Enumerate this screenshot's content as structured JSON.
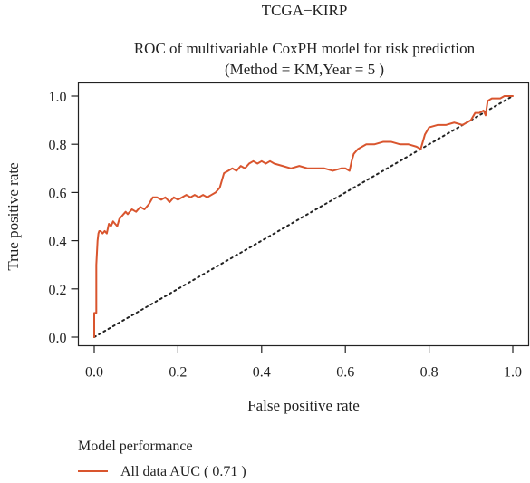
{
  "chart_data": {
    "type": "line",
    "supertitle": "TCGA−KIRP",
    "title": "ROC of multivariable CoxPH model for risk prediction",
    "subtitle": "(Method = KM,Year = 5 )",
    "xlabel": "False positive rate",
    "ylabel": "True positive rate",
    "xlim": [
      0,
      1
    ],
    "ylim": [
      0,
      1
    ],
    "xticks": [
      "0.0",
      "0.2",
      "0.4",
      "0.6",
      "0.8",
      "1.0"
    ],
    "yticks": [
      "0.0",
      "0.2",
      "0.4",
      "0.6",
      "0.8",
      "1.0"
    ],
    "grid": false,
    "legend_position": "bottom-left",
    "legend_title": "Model performance",
    "series": [
      {
        "name": "All data AUC ( 0.71 )",
        "color": "#d9552e",
        "x": [
          0,
          0,
          0.005,
          0.005,
          0.008,
          0.01,
          0.012,
          0.015,
          0.02,
          0.025,
          0.03,
          0.035,
          0.04,
          0.045,
          0.05,
          0.055,
          0.06,
          0.065,
          0.07,
          0.075,
          0.08,
          0.09,
          0.1,
          0.11,
          0.12,
          0.13,
          0.14,
          0.15,
          0.16,
          0.17,
          0.18,
          0.19,
          0.2,
          0.21,
          0.22,
          0.23,
          0.24,
          0.25,
          0.26,
          0.27,
          0.28,
          0.29,
          0.3,
          0.305,
          0.31,
          0.32,
          0.33,
          0.34,
          0.35,
          0.36,
          0.37,
          0.38,
          0.39,
          0.4,
          0.41,
          0.42,
          0.43,
          0.45,
          0.47,
          0.49,
          0.51,
          0.53,
          0.55,
          0.57,
          0.59,
          0.6,
          0.61,
          0.615,
          0.62,
          0.63,
          0.65,
          0.67,
          0.69,
          0.71,
          0.73,
          0.75,
          0.77,
          0.78,
          0.785,
          0.79,
          0.8,
          0.82,
          0.84,
          0.86,
          0.88,
          0.9,
          0.91,
          0.92,
          0.93,
          0.935,
          0.94,
          0.95,
          0.96,
          0.97,
          0.98,
          0.99,
          1.0
        ],
        "y": [
          0,
          0.1,
          0.1,
          0.3,
          0.4,
          0.43,
          0.44,
          0.44,
          0.43,
          0.44,
          0.43,
          0.47,
          0.46,
          0.48,
          0.47,
          0.46,
          0.49,
          0.5,
          0.51,
          0.52,
          0.51,
          0.53,
          0.52,
          0.54,
          0.53,
          0.55,
          0.58,
          0.58,
          0.57,
          0.58,
          0.56,
          0.58,
          0.57,
          0.58,
          0.59,
          0.58,
          0.59,
          0.58,
          0.59,
          0.58,
          0.59,
          0.6,
          0.62,
          0.65,
          0.68,
          0.69,
          0.7,
          0.69,
          0.71,
          0.7,
          0.72,
          0.73,
          0.72,
          0.73,
          0.72,
          0.73,
          0.72,
          0.71,
          0.7,
          0.71,
          0.7,
          0.7,
          0.7,
          0.69,
          0.7,
          0.7,
          0.69,
          0.73,
          0.76,
          0.78,
          0.8,
          0.8,
          0.81,
          0.81,
          0.8,
          0.8,
          0.79,
          0.78,
          0.81,
          0.84,
          0.87,
          0.88,
          0.88,
          0.89,
          0.88,
          0.9,
          0.93,
          0.93,
          0.94,
          0.92,
          0.98,
          0.99,
          0.99,
          0.99,
          1.0,
          1.0,
          1.0
        ]
      }
    ],
    "reference_line": {
      "style": "dotted",
      "color": "#222222",
      "x": [
        0,
        1
      ],
      "y": [
        0,
        1
      ]
    }
  }
}
